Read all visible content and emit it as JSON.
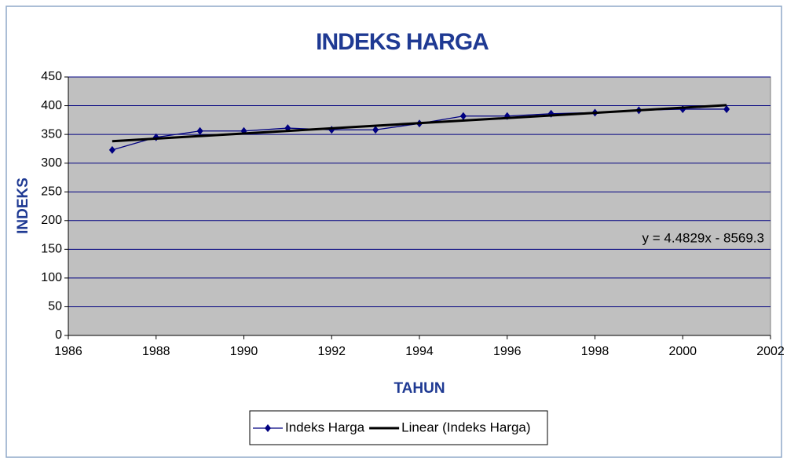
{
  "chart_data": {
    "type": "line",
    "title": "INDEKS HARGA",
    "xlabel": "TAHUN",
    "ylabel": "INDEKS",
    "x": [
      1987,
      1988,
      1989,
      1990,
      1991,
      1992,
      1993,
      1994,
      1995,
      1996,
      1997,
      1998,
      1999,
      2000,
      2001
    ],
    "series": [
      {
        "name": "Indeks Harga",
        "color": "#000080",
        "values": [
          323,
          345,
          356,
          356,
          361,
          358,
          358,
          369,
          382,
          382,
          386,
          388,
          392,
          394,
          394
        ]
      },
      {
        "name": "Linear (Indeks Harga)",
        "color": "#000000",
        "x": [
          1987,
          2001
        ],
        "values": [
          338.2,
          401.0
        ]
      }
    ],
    "annotation": "y = 4.4829x - 8569.3",
    "xlim": [
      1986,
      2002
    ],
    "xticks": [
      1986,
      1988,
      1990,
      1992,
      1994,
      1996,
      1998,
      2000,
      2002
    ],
    "ylim": [
      0,
      450
    ],
    "yticks": [
      0,
      50,
      100,
      150,
      200,
      250,
      300,
      350,
      400,
      450
    ],
    "grid": true,
    "legend": "bottom",
    "plot_background": "#c0c0c0"
  }
}
